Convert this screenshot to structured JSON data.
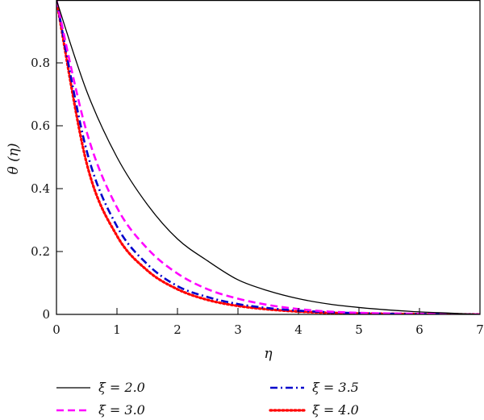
{
  "chart_data": {
    "type": "line",
    "xlabel": "η",
    "ylabel": "θ (η)",
    "xlim": [
      0,
      7
    ],
    "ylim": [
      0,
      1
    ],
    "xticks": [
      "0",
      "1",
      "2",
      "3",
      "4",
      "5",
      "6",
      "7"
    ],
    "yticks": [
      "0",
      "0.2",
      "0.4",
      "0.6",
      "0.8"
    ],
    "grid": false,
    "legend_position": "bottom",
    "x": [
      0,
      0.5,
      1,
      1.5,
      2,
      2.5,
      3,
      3.5,
      4,
      4.5,
      5,
      5.5,
      6,
      6.5,
      7
    ],
    "series": [
      {
        "name": "ξ = 2.0",
        "color": "#000000",
        "style": "solid",
        "values": [
          1.0,
          0.71,
          0.5,
          0.35,
          0.24,
          0.17,
          0.11,
          0.075,
          0.05,
          0.033,
          0.022,
          0.014,
          0.008,
          0.004,
          0.0
        ]
      },
      {
        "name": "ξ = 3.0",
        "color": "#ff00ff",
        "style": "dashed",
        "values": [
          1.0,
          0.58,
          0.34,
          0.21,
          0.13,
          0.08,
          0.05,
          0.03,
          0.017,
          0.009,
          0.005,
          0.003,
          0.002,
          0.001,
          0.0
        ]
      },
      {
        "name": "ξ = 3.5",
        "color": "#0000cc",
        "style": "dashdot",
        "values": [
          1.0,
          0.52,
          0.28,
          0.16,
          0.09,
          0.055,
          0.033,
          0.02,
          0.012,
          0.007,
          0.004,
          0.002,
          0.001,
          0.0,
          0.0
        ]
      },
      {
        "name": "ξ = 4.0",
        "color": "#ff0000",
        "style": "dotted",
        "values": [
          1.0,
          0.48,
          0.25,
          0.14,
          0.08,
          0.046,
          0.027,
          0.016,
          0.009,
          0.005,
          0.003,
          0.002,
          0.001,
          0.0,
          0.0
        ]
      }
    ]
  }
}
